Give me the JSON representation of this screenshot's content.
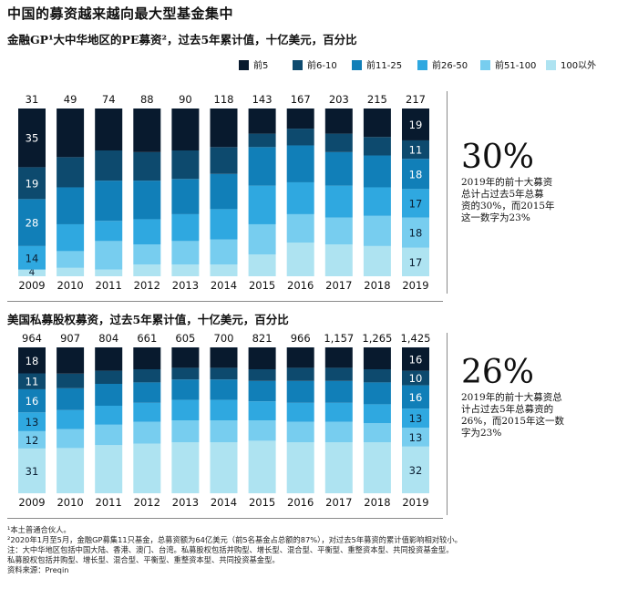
{
  "title": "中国的募资越来越向最大型基金集中",
  "chart1_subtitle": "金融GP¹大中华地区的PE募资²，过去5年累计值，十亿美元，百分比",
  "chart2_subtitle": "美国私募股权募资，过去5年累计值，十亿美元，百分比",
  "colors": [
    "#081a2e",
    "#0d4a6e",
    "#117fb8",
    "#2fa8e0",
    "#77cdef",
    "#aee3f1"
  ],
  "callout1": {
    "big": "30%",
    "lines": [
      "2019年的前十大募资",
      "总计占过去5年总募",
      "资的30%，而2015年",
      "这一数字为23%"
    ]
  },
  "callout2": {
    "big": "26%",
    "lines": [
      "2019年的前十大募资总",
      "计占过去5年总募资的",
      "26%，而2015年这一数",
      "字为23%"
    ]
  },
  "footer": [
    "¹本土普通合伙人。",
    "²2020年1月至5月，金融GP募集11只基金，总募资额为64亿美元（前5名基金占总额的87%），对过去5年募资的累计值影响相对较小。",
    "注：大中华地区包括中国大陆、香港、澳门、台湾。私募股权包括并购型、增长型、混合型、平衡型、重整资本型、共同投资基金型。",
    "私募股权包括并购型、增长型、混合型、平衡型、重整资本型、共同投资基金型。",
    "资料来源：Preqin"
  ],
  "chart_data": [
    {
      "type": "bar",
      "stacked": true,
      "normalized": true,
      "title": "金融GP¹大中华地区的PE募资²，过去5年累计值，十亿美元，百分比",
      "categories": [
        "2009",
        "2010",
        "2011",
        "2012",
        "2013",
        "2014",
        "2015",
        "2016",
        "2017",
        "2018",
        "2019"
      ],
      "totals": [
        31,
        49,
        74,
        88,
        90,
        118,
        143,
        167,
        203,
        215,
        217
      ],
      "series": [
        {
          "name": "前5",
          "values": [
            35,
            29,
            25,
            26,
            25,
            23,
            15,
            12,
            15,
            17,
            19
          ]
        },
        {
          "name": "前6-10",
          "values": [
            19,
            18,
            18,
            17,
            17,
            16,
            8,
            10,
            11,
            11,
            11
          ]
        },
        {
          "name": "前11-25",
          "values": [
            28,
            22,
            24,
            23,
            21,
            21,
            23,
            22,
            20,
            19,
            18
          ]
        },
        {
          "name": "前26-50",
          "values": [
            14,
            16,
            12,
            15,
            16,
            18,
            23,
            19,
            19,
            17,
            17
          ]
        },
        {
          "name": "前51-100",
          "values": [
            0,
            10,
            17,
            12,
            14,
            15,
            18,
            17,
            16,
            18,
            18
          ]
        },
        {
          "name": "100以外",
          "values": [
            4,
            5,
            4,
            7,
            7,
            7,
            13,
            20,
            19,
            18,
            17
          ]
        }
      ],
      "labeled_year": "2019",
      "labels_2009": [
        35,
        19,
        28,
        14,
        4
      ],
      "labels_2019": [
        19,
        11,
        18,
        17,
        18,
        17
      ]
    },
    {
      "type": "bar",
      "stacked": true,
      "normalized": true,
      "title": "美国私募股权募资，过去5年累计值，十亿美元，百分比",
      "categories": [
        "2009",
        "2010",
        "2011",
        "2012",
        "2013",
        "2014",
        "2015",
        "2016",
        "2017",
        "2018",
        "2019"
      ],
      "totals": [
        "964",
        "907",
        "804",
        "661",
        "605",
        "700",
        "821",
        "966",
        "1,157",
        "1,265",
        "1,425"
      ],
      "series": [
        {
          "name": "前5",
          "values": [
            18,
            18,
            16,
            15,
            14,
            14,
            15,
            14,
            14,
            15,
            16
          ]
        },
        {
          "name": "前6-10",
          "values": [
            11,
            10,
            9,
            9,
            8,
            8,
            8,
            9,
            9,
            9,
            10
          ]
        },
        {
          "name": "前11-25",
          "values": [
            16,
            15,
            15,
            14,
            14,
            14,
            14,
            15,
            15,
            15,
            16
          ]
        },
        {
          "name": "前26-50",
          "values": [
            13,
            13,
            13,
            13,
            14,
            14,
            13,
            13,
            13,
            13,
            13
          ]
        },
        {
          "name": "前51-100",
          "values": [
            12,
            13,
            14,
            15,
            15,
            15,
            14,
            14,
            14,
            13,
            13
          ]
        },
        {
          "name": "100以外",
          "values": [
            31,
            31,
            33,
            34,
            35,
            35,
            36,
            35,
            35,
            35,
            32
          ]
        }
      ],
      "labels_2009": [
        18,
        11,
        16,
        13,
        12,
        31
      ],
      "labels_2019": [
        16,
        10,
        16,
        13,
        13,
        32
      ]
    }
  ]
}
